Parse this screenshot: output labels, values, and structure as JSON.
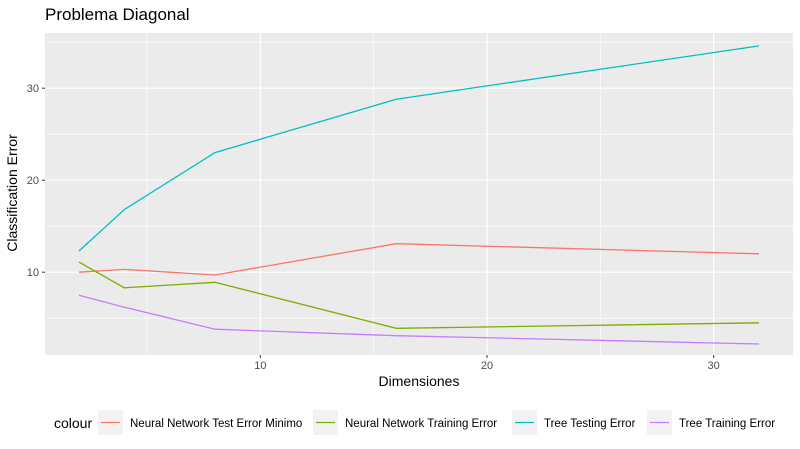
{
  "chart_data": {
    "type": "line",
    "title": "Problema Diagonal",
    "xlabel": "Dimensiones",
    "ylabel": "Classification Error",
    "xlim": [
      0.5,
      33.5
    ],
    "ylim": [
      1.0,
      36.0
    ],
    "x_ticks": [
      10,
      20,
      30
    ],
    "y_ticks": [
      10,
      20,
      30
    ],
    "x_minor_ticks": [
      5,
      15,
      25
    ],
    "y_minor_ticks": [
      5,
      15,
      25,
      35
    ],
    "grid": true,
    "legend_title": "colour",
    "legend_position": "bottom",
    "series": [
      {
        "name": "Neural Network Test Error Minimo",
        "color": "#F8766D",
        "x": [
          2,
          4,
          8,
          16,
          32
        ],
        "y": [
          10.0,
          10.3,
          9.7,
          13.1,
          12.0
        ]
      },
      {
        "name": "Neural Network Training Error",
        "color": "#7CAE00",
        "x": [
          2,
          4,
          8,
          16,
          32
        ],
        "y": [
          11.1,
          8.3,
          8.9,
          3.9,
          4.5
        ]
      },
      {
        "name": "Tree Testing Error",
        "color": "#00BFC4",
        "x": [
          2,
          4,
          8,
          16,
          32
        ],
        "y": [
          12.3,
          16.8,
          23.0,
          28.8,
          34.6
        ]
      },
      {
        "name": "Tree Training Error",
        "color": "#C77CFF",
        "x": [
          2,
          4,
          8,
          16,
          32
        ],
        "y": [
          7.5,
          6.2,
          3.8,
          3.1,
          2.2
        ]
      }
    ]
  }
}
